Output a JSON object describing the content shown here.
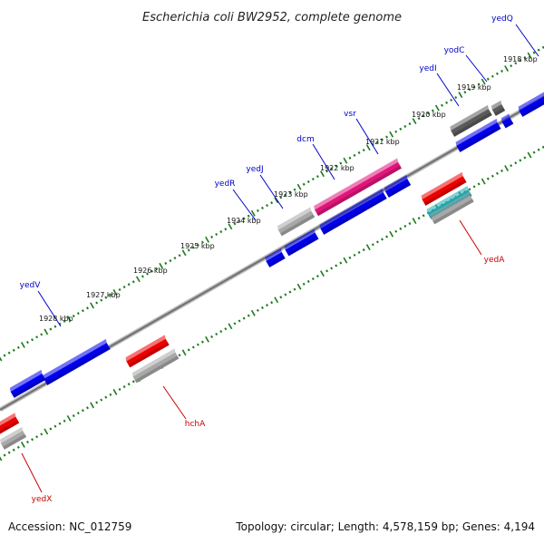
{
  "title": "Escherichia coli BW2952, complete genome",
  "footer": {
    "accession": "Accession: NC_012759",
    "stats": "Topology: circular; Length: 4,578,159 bp; Genes: 4,194"
  },
  "colors": {
    "forward_gene": "#0000ee",
    "reverse_gene": "#ee0000",
    "gray_gene": "#a8a8a8",
    "dark_gene": "#5a5a5a",
    "pink_gene": "#e0157a",
    "teal_gene": "#1fa8b0",
    "backbone": "#8a8a8a",
    "ticks": "#1c7a1c",
    "forward_label": "#0000cc",
    "reverse_label": "#cc0000"
  },
  "kbp_labels": [
    "1918 kbp",
    "1919 kbp",
    "1920 kbp",
    "1921 kbp",
    "1922 kbp",
    "1923 kbp",
    "1924 kbp",
    "1925 kbp",
    "1926 kbp",
    "1927 kbp",
    "1928 kbp"
  ],
  "forward_labels": [
    "yedQ",
    "yodC",
    "yedI",
    "vsr",
    "dcm",
    "yedJ",
    "yedR",
    "yedV"
  ],
  "reverse_labels": [
    "yedA",
    "hchA",
    "yedX"
  ]
}
